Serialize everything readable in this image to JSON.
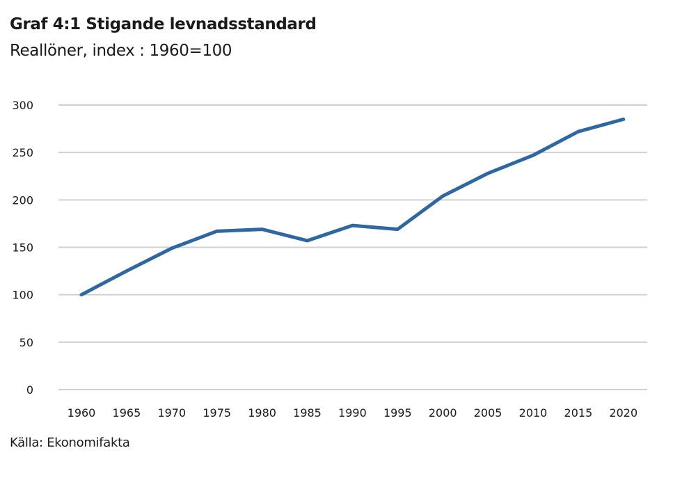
{
  "title": "Graf 4:1 Stigande levnadsstandard",
  "subtitle": "Reallöner, index : 1960=100",
  "source": "Källa: Ekonomifakta",
  "colors": {
    "line": "#2f67a0",
    "grid": "#d0d0d0",
    "text": "#1a1a1a"
  },
  "chart_data": {
    "type": "line",
    "title": "Graf 4:1 Stigande levnadsstandard",
    "subtitle": "Reallöner, index : 1960=100",
    "xlabel": "",
    "ylabel": "",
    "categories": [
      "1960",
      "1965",
      "1970",
      "1975",
      "1980",
      "1985",
      "1990",
      "1995",
      "2000",
      "2005",
      "2010",
      "2015",
      "2020"
    ],
    "series": [
      {
        "name": "Reallöner",
        "values": [
          100,
          125,
          149,
          167,
          169,
          157,
          173,
          169,
          204,
          228,
          247,
          272,
          285
        ]
      }
    ],
    "ylim": [
      0,
      300
    ],
    "yticks": [
      0,
      50,
      100,
      150,
      200,
      250,
      300
    ],
    "ytick_labels": [
      "0",
      "50",
      "100",
      "150",
      "200",
      "250",
      "300"
    ],
    "grid": "horizontal",
    "legend": "none"
  }
}
